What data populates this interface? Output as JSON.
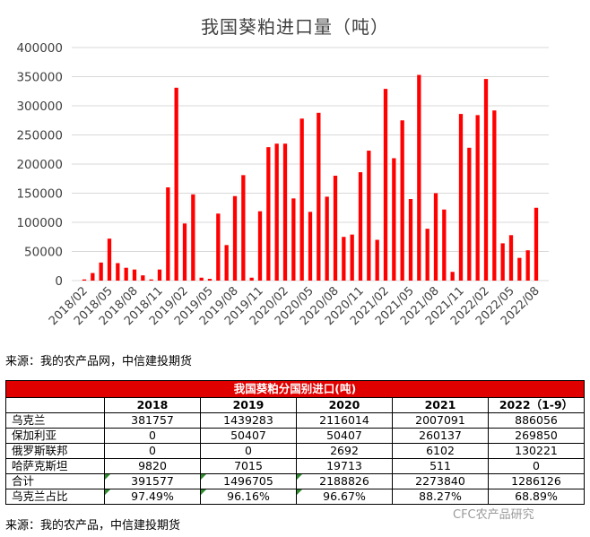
{
  "chart_data": {
    "type": "bar",
    "title": "我国葵粕进口量（吨）",
    "x_tick_labels": [
      "2018/02",
      "2018/05",
      "2018/08",
      "2018/11",
      "2019/02",
      "2019/05",
      "2019/08",
      "2019/11",
      "2020/02",
      "2020/05",
      "2020/08",
      "2020/11",
      "2021/02",
      "2021/05",
      "2021/08",
      "2021/11",
      "2022/02",
      "2022/05",
      "2022/08"
    ],
    "categories": [
      "2018/01",
      "2018/02",
      "2018/03",
      "2018/04",
      "2018/05",
      "2018/06",
      "2018/07",
      "2018/08",
      "2018/09",
      "2018/10",
      "2018/11",
      "2018/12",
      "2019/01",
      "2019/02",
      "2019/03",
      "2019/04",
      "2019/05",
      "2019/06",
      "2019/07",
      "2019/08",
      "2019/09",
      "2019/10",
      "2019/11",
      "2019/12",
      "2020/01",
      "2020/02",
      "2020/03",
      "2020/04",
      "2020/05",
      "2020/06",
      "2020/07",
      "2020/08",
      "2020/09",
      "2020/10",
      "2020/11",
      "2020/12",
      "2021/01",
      "2021/02",
      "2021/03",
      "2021/04",
      "2021/05",
      "2021/06",
      "2021/07",
      "2021/08",
      "2021/09",
      "2021/10",
      "2021/11",
      "2021/12",
      "2022/01",
      "2022/02",
      "2022/03",
      "2022/04",
      "2022/05",
      "2022/06",
      "2022/07",
      "2022/08",
      "2022/09"
    ],
    "values": [
      0,
      2000,
      13000,
      31000,
      72000,
      30000,
      22000,
      19000,
      9000,
      2000,
      19000,
      160000,
      331000,
      98000,
      148000,
      5000,
      3000,
      115000,
      61000,
      145000,
      181000,
      5000,
      119000,
      229000,
      235000,
      235000,
      141000,
      278000,
      118000,
      288000,
      144000,
      180000,
      75000,
      79000,
      186000,
      223000,
      70000,
      329000,
      210000,
      275000,
      140000,
      353000,
      89000,
      150000,
      122000,
      15000,
      286000,
      228000,
      284000,
      346000,
      292000,
      64000,
      78000,
      39000,
      52000,
      125000,
      0
    ],
    "ylim": [
      0,
      400000
    ],
    "yticks": [
      "0",
      "50000",
      "100000",
      "150000",
      "200000",
      "250000",
      "300000",
      "350000",
      "400000"
    ],
    "bar_color": "#ff0000",
    "grid": true
  },
  "source_top": "来源：我的农产品网，中信建投期货",
  "table": {
    "caption": "我国葵粕分国别进口(吨)",
    "headers": [
      "",
      "2018",
      "2019",
      "2020",
      "2021",
      "2022（1-9）"
    ],
    "rows": [
      [
        "乌克兰",
        "381757",
        "1439283",
        "2116014",
        "2007091",
        "886056"
      ],
      [
        "保加利亚",
        "0",
        "50407",
        "50407",
        "260137",
        "269850"
      ],
      [
        "俄罗斯联邦",
        "0",
        "0",
        "2692",
        "6102",
        "130221"
      ],
      [
        "哈萨克斯坦",
        "9820",
        "7015",
        "19713",
        "511",
        "0"
      ],
      [
        "合计",
        "391577",
        "1496705",
        "2188826",
        "2273840",
        "1286126"
      ],
      [
        "乌克兰占比",
        "97.49%",
        "96.16%",
        "96.67%",
        "88.27%",
        "68.89%"
      ]
    ],
    "header_color": "#e00000"
  },
  "source_bottom": "来源：我的农产品，中信建投期货",
  "watermark": "CFC农产品研究"
}
